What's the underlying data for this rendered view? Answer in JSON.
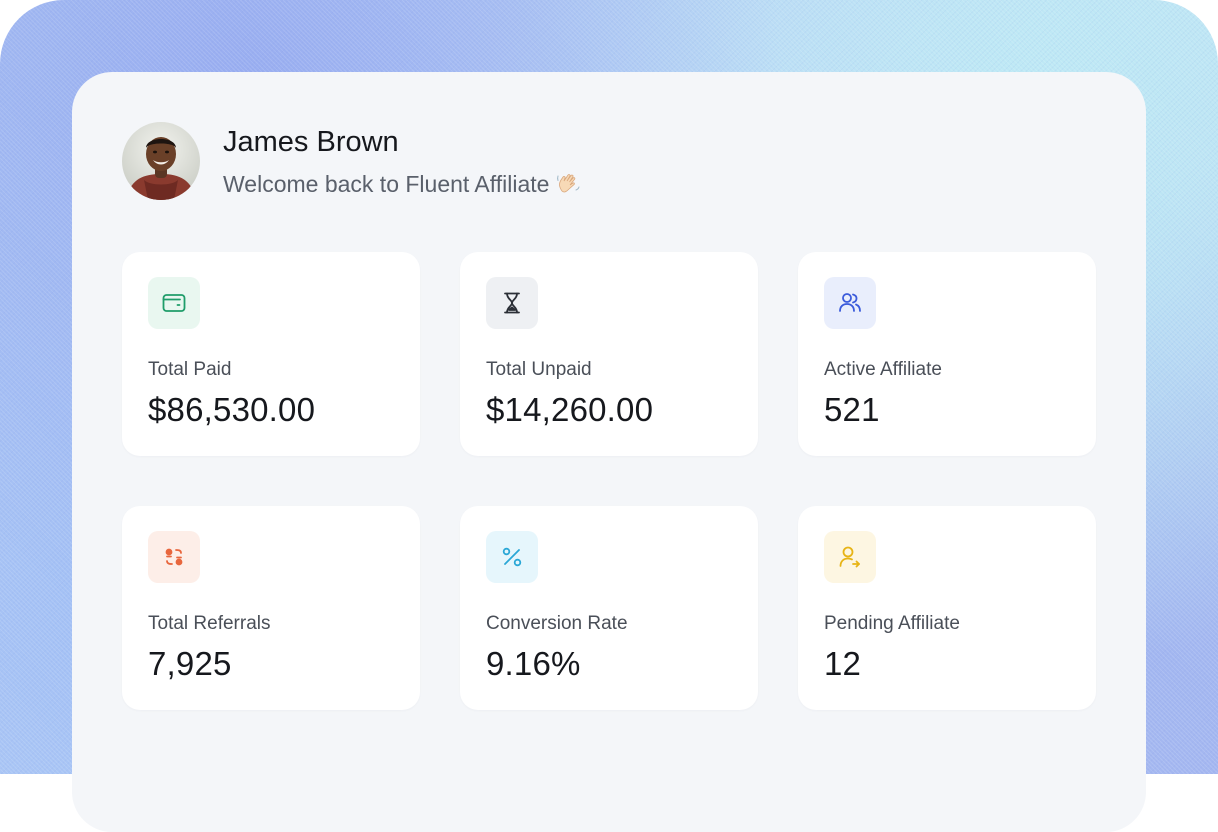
{
  "profile": {
    "name": "James Brown",
    "welcome": "Welcome back to Fluent Affiliate",
    "wave_icon": "waving-hand-icon"
  },
  "stats": [
    {
      "label": "Total Paid",
      "value": "$86,530.00",
      "icon": "wallet-icon",
      "icon_color": "#1f9d6a",
      "icon_bg": "#e9f7f0"
    },
    {
      "label": "Total Unpaid",
      "value": "$14,260.00",
      "icon": "hourglass-icon",
      "icon_color": "#2b2f36",
      "icon_bg": "#eef0f3"
    },
    {
      "label": "Active Affiliate",
      "value": "521",
      "icon": "users-icon",
      "icon_color": "#3b5bdb",
      "icon_bg": "#e9eefc"
    },
    {
      "label": "Total Referrals",
      "value": "7,925",
      "icon": "referrals-icon",
      "icon_color": "#e8663d",
      "icon_bg": "#fdeee8"
    },
    {
      "label": "Conversion Rate",
      "value": "9.16%",
      "icon": "percent-icon",
      "icon_color": "#2aa7d6",
      "icon_bg": "#e6f6fc"
    },
    {
      "label": "Pending Affiliate",
      "value": "12",
      "icon": "user-pending-icon",
      "icon_color": "#e7b416",
      "icon_bg": "#fdf6e2"
    }
  ]
}
